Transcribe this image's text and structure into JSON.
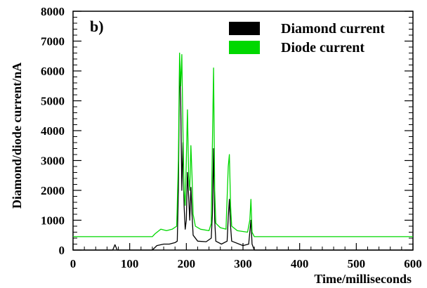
{
  "chart_data": {
    "type": "line",
    "panel_label": "b)",
    "xlabel": "Time/milliseconds",
    "ylabel": "Diamond/diode current/nA",
    "xlim": [
      0,
      600
    ],
    "ylim": [
      0,
      8000
    ],
    "x_ticks": [
      0,
      100,
      200,
      300,
      400,
      500,
      600
    ],
    "y_ticks": [
      0,
      1000,
      2000,
      3000,
      4000,
      5000,
      6000,
      7000,
      8000
    ],
    "grid": false,
    "legend_position": "top-right",
    "series": [
      {
        "name": "Diamond current",
        "color": "#000000",
        "points": [
          [
            0,
            0
          ],
          [
            70,
            0
          ],
          [
            74,
            180
          ],
          [
            78,
            0
          ],
          [
            140,
            0
          ],
          [
            148,
            150
          ],
          [
            160,
            200
          ],
          [
            170,
            200
          ],
          [
            180,
            250
          ],
          [
            184,
            300
          ],
          [
            186,
            2000
          ],
          [
            188,
            6200
          ],
          [
            190,
            5000
          ],
          [
            192,
            2000
          ],
          [
            194,
            3600
          ],
          [
            196,
            1500
          ],
          [
            198,
            700
          ],
          [
            200,
            1000
          ],
          [
            202,
            2600
          ],
          [
            204,
            1800
          ],
          [
            206,
            1000
          ],
          [
            208,
            2100
          ],
          [
            210,
            1200
          ],
          [
            212,
            500
          ],
          [
            220,
            300
          ],
          [
            235,
            280
          ],
          [
            244,
            400
          ],
          [
            246,
            1200
          ],
          [
            248,
            3400
          ],
          [
            250,
            1000
          ],
          [
            252,
            300
          ],
          [
            262,
            200
          ],
          [
            272,
            300
          ],
          [
            274,
            1100
          ],
          [
            276,
            1700
          ],
          [
            278,
            800
          ],
          [
            280,
            300
          ],
          [
            300,
            150
          ],
          [
            310,
            200
          ],
          [
            312,
            600
          ],
          [
            314,
            1000
          ],
          [
            316,
            200
          ],
          [
            320,
            0
          ],
          [
            600,
            0
          ]
        ]
      },
      {
        "name": "Diode current",
        "color": "#00d800",
        "points": [
          [
            0,
            450
          ],
          [
            140,
            450
          ],
          [
            145,
            550
          ],
          [
            155,
            700
          ],
          [
            165,
            650
          ],
          [
            175,
            700
          ],
          [
            183,
            800
          ],
          [
            186,
            3000
          ],
          [
            188,
            6600
          ],
          [
            190,
            5500
          ],
          [
            192,
            6550
          ],
          [
            194,
            4000
          ],
          [
            196,
            2000
          ],
          [
            198,
            1500
          ],
          [
            200,
            3000
          ],
          [
            202,
            4700
          ],
          [
            204,
            2500
          ],
          [
            206,
            2000
          ],
          [
            208,
            3500
          ],
          [
            210,
            2500
          ],
          [
            212,
            1200
          ],
          [
            216,
            800
          ],
          [
            225,
            700
          ],
          [
            240,
            650
          ],
          [
            244,
            900
          ],
          [
            246,
            3500
          ],
          [
            248,
            6100
          ],
          [
            250,
            2000
          ],
          [
            252,
            900
          ],
          [
            260,
            750
          ],
          [
            270,
            700
          ],
          [
            274,
            2800
          ],
          [
            276,
            3200
          ],
          [
            278,
            1500
          ],
          [
            280,
            800
          ],
          [
            290,
            650
          ],
          [
            308,
            600
          ],
          [
            312,
            1000
          ],
          [
            314,
            1700
          ],
          [
            316,
            600
          ],
          [
            320,
            450
          ],
          [
            600,
            450
          ]
        ]
      }
    ]
  }
}
